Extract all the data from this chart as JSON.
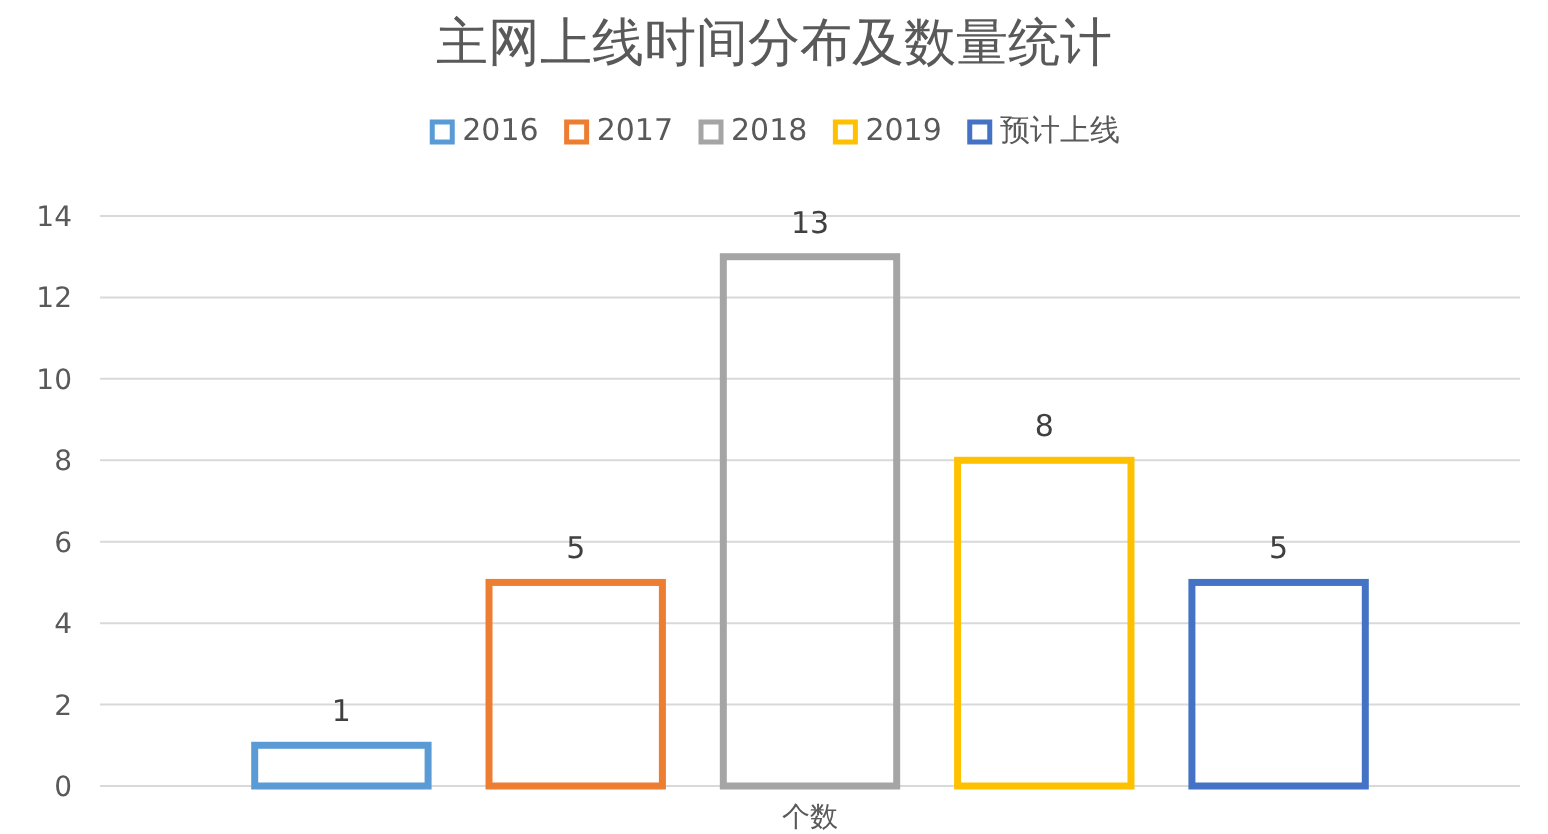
{
  "chart_data": {
    "type": "bar",
    "title": "主网上线时间分布及数量统计",
    "categories": [
      "个数"
    ],
    "series": [
      {
        "name": "2016",
        "color": "#5b9bd5",
        "values": [
          1
        ]
      },
      {
        "name": "2017",
        "color": "#ed7d31",
        "values": [
          5
        ]
      },
      {
        "name": "2018",
        "color": "#a5a5a5",
        "values": [
          13
        ]
      },
      {
        "name": "2019",
        "color": "#ffc000",
        "values": [
          8
        ]
      },
      {
        "name": "预计上线",
        "color": "#4472c4",
        "values": [
          5
        ]
      }
    ],
    "ylim": [
      0,
      14
    ],
    "yticks": [
      0,
      2,
      4,
      6,
      8,
      10,
      12,
      14
    ],
    "grid": "y",
    "legend": "top",
    "data_labels": true
  }
}
